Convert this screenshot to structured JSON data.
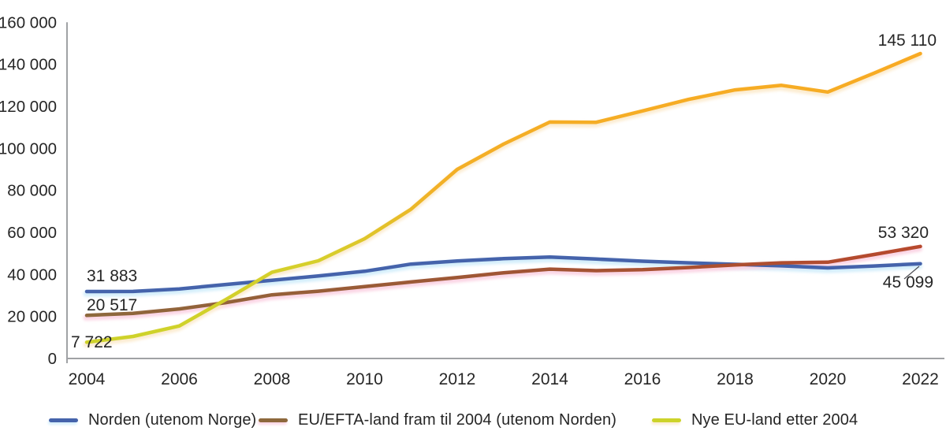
{
  "chart_data": {
    "type": "line",
    "title": "",
    "x": [
      2004,
      2005,
      2006,
      2007,
      2008,
      2009,
      2010,
      2011,
      2012,
      2013,
      2014,
      2015,
      2016,
      2017,
      2018,
      2019,
      2020,
      2021,
      2022
    ],
    "xticks": [
      2004,
      2006,
      2008,
      2010,
      2012,
      2014,
      2016,
      2018,
      2020,
      2022
    ],
    "xtick_labels": [
      "2004",
      "2006",
      "2008",
      "2010",
      "2012",
      "2014",
      "2016",
      "2018",
      "2020",
      "2022"
    ],
    "ylim": [
      0,
      160000
    ],
    "ytick_step": 20000,
    "yticks": [
      0,
      20000,
      40000,
      60000,
      80000,
      100000,
      120000,
      140000,
      160000
    ],
    "ytick_labels": [
      "0",
      "20 000",
      "40 000",
      "60 000",
      "80 000",
      "100 000",
      "120 000",
      "140 000",
      "160 000"
    ],
    "grid": false,
    "legend_position": "bottom",
    "series": [
      {
        "id": "norden",
        "name": "Norden (utenom Norge)",
        "color": "#4563ab",
        "glow": "#d3eefb",
        "values": [
          31883,
          31900,
          33100,
          35200,
          37200,
          39300,
          41500,
          44900,
          46400,
          47500,
          48300,
          47300,
          46300,
          45500,
          44800,
          44100,
          43100,
          44000,
          45099
        ]
      },
      {
        "id": "eu-efta",
        "name": "EU/EFTA-land fram til 2004 (utenom Norden)",
        "color": "#8d683c",
        "color_end": "#b7492d",
        "gradient": "horizontal",
        "glow": "#fbd4e4",
        "values": [
          20517,
          21500,
          23600,
          26600,
          30300,
          32000,
          34200,
          36400,
          38500,
          40800,
          42500,
          41800,
          42300,
          43300,
          44500,
          45500,
          45800,
          49500,
          53320
        ]
      },
      {
        "id": "nye-eu",
        "name": "Nye EU-land etter 2004",
        "color": "#ccd32a",
        "color_end": "#f9a922",
        "gradient": "vertical",
        "glow": "#fcecd0",
        "values": [
          7722,
          10500,
          15500,
          28000,
          41000,
          46500,
          57000,
          71000,
          90000,
          102000,
          112500,
          112400,
          117800,
          123300,
          127800,
          130000,
          126800,
          135800,
          145110
        ]
      }
    ],
    "annotations": [
      {
        "id": "norden-2004",
        "label": "31 883",
        "x": 110,
        "y": 357,
        "anchor": "start"
      },
      {
        "id": "eu-efta-2004",
        "label": "20 517",
        "x": 110,
        "y": 394,
        "anchor": "start"
      },
      {
        "id": "nye-eu-2004",
        "label": "7 722",
        "x": 90,
        "y": 441,
        "anchor": "start"
      },
      {
        "id": "nye-eu-2022",
        "label": "145 110",
        "x": 1188,
        "y": 58,
        "anchor": "end"
      },
      {
        "id": "eu-efta-2022",
        "label": "53 320",
        "x": 1178,
        "y": 302,
        "anchor": "end"
      },
      {
        "id": "norden-2022",
        "label": "45 099",
        "x": 1184,
        "y": 365,
        "anchor": "end"
      }
    ],
    "leader_line": {
      "x1": 1147,
      "y1": 354,
      "x2": 1166,
      "y2": 338
    },
    "axis_color": "#a0a2a5",
    "text_color": "#262626"
  }
}
